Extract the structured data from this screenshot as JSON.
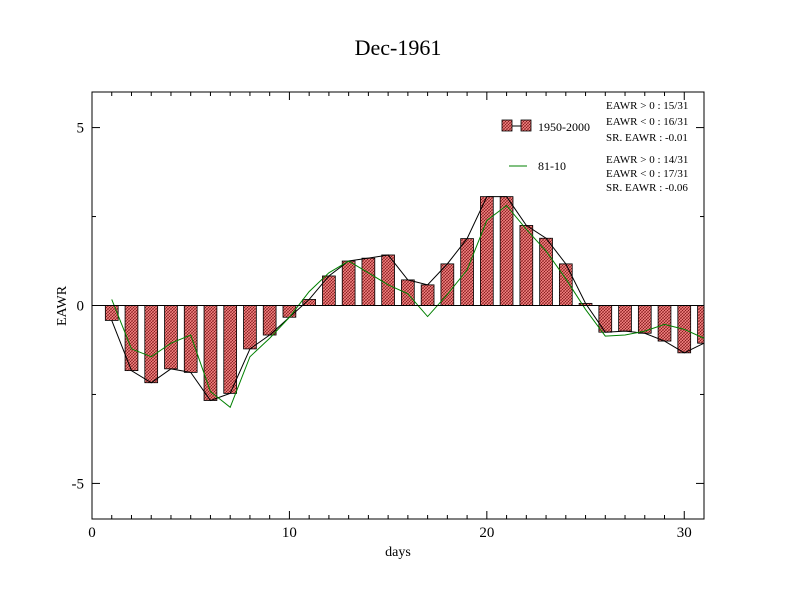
{
  "chart_data": {
    "type": "bar",
    "title": "Dec-1961",
    "xlabel": "days",
    "ylabel": "EAWR",
    "xlim": [
      0,
      31
    ],
    "ylim": [
      -6,
      6
    ],
    "x_ticks": [
      0,
      10,
      20,
      30
    ],
    "y_ticks": [
      5,
      0,
      -5
    ],
    "x_tick_labels": [
      "0",
      "10",
      "20",
      "30"
    ],
    "y_tick_labels": [
      "5",
      "0",
      "-5"
    ],
    "grid": false,
    "legend_position": "top-right",
    "days": [
      1,
      2,
      3,
      4,
      5,
      6,
      7,
      8,
      9,
      10,
      11,
      12,
      13,
      14,
      15,
      16,
      17,
      18,
      19,
      20,
      21,
      22,
      23,
      24,
      25,
      26,
      27,
      28,
      29,
      30,
      31
    ],
    "series": [
      {
        "name": "1950-2000",
        "kind": "bar-with-line",
        "bar_fill": "#f08080",
        "values": [
          -0.42,
          -1.83,
          -2.17,
          -1.78,
          -1.88,
          -2.67,
          -2.47,
          -1.22,
          -0.83,
          -0.33,
          0.17,
          0.83,
          1.25,
          1.33,
          1.42,
          0.72,
          0.58,
          1.17,
          1.88,
          3.06,
          3.06,
          2.25,
          1.89,
          1.17,
          0.06,
          -0.75,
          -0.72,
          -0.78,
          -1.0,
          -1.33,
          -1.06
        ]
      },
      {
        "name": "81-10",
        "kind": "line",
        "color": "#008000",
        "values": [
          0.17,
          -1.22,
          -1.44,
          -1.06,
          -0.83,
          -2.42,
          -2.86,
          -1.44,
          -0.92,
          -0.33,
          0.39,
          0.92,
          1.25,
          0.92,
          0.58,
          0.33,
          -0.31,
          0.31,
          1.0,
          2.39,
          2.81,
          2.14,
          1.53,
          0.75,
          -0.11,
          -0.86,
          -0.83,
          -0.72,
          -0.53,
          -0.67,
          -0.92
        ]
      }
    ],
    "stats": {
      "group1": [
        "EAWR > 0 : 15/31",
        "EAWR < 0 : 16/31",
        "SR. EAWR : -0.01"
      ],
      "group2": [
        "EAWR > 0 : 14/31",
        "EAWR < 0 : 17/31",
        "SR. EAWR : -0.06"
      ]
    }
  }
}
